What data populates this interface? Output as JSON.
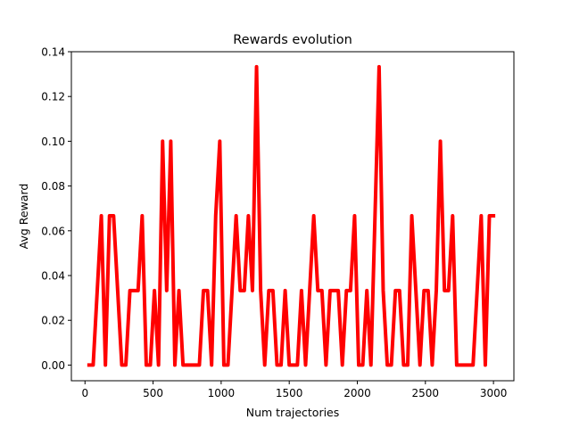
{
  "chart_data": {
    "type": "line",
    "title": "Rewards evolution",
    "xlabel": "Num trajectories",
    "ylabel": "Avg Reward",
    "xlim": [
      -100,
      3150
    ],
    "ylim": [
      -0.007,
      0.14
    ],
    "x_ticks": [
      0,
      500,
      1000,
      1500,
      2000,
      2500,
      3000
    ],
    "x_tick_labels": [
      "0",
      "500",
      "1000",
      "1500",
      "2000",
      "2500",
      "3000"
    ],
    "y_ticks": [
      0.0,
      0.02,
      0.04,
      0.06,
      0.08,
      0.1,
      0.12,
      0.14
    ],
    "y_tick_labels": [
      "0.00",
      "0.02",
      "0.04",
      "0.06",
      "0.08",
      "0.10",
      "0.12",
      "0.14"
    ],
    "grid": false,
    "series": [
      {
        "color": "#ff0000",
        "x": [
          30,
          60,
          90,
          120,
          150,
          180,
          210,
          240,
          270,
          300,
          330,
          360,
          390,
          420,
          450,
          480,
          510,
          540,
          570,
          600,
          630,
          660,
          690,
          720,
          750,
          780,
          810,
          840,
          870,
          900,
          930,
          960,
          990,
          1020,
          1050,
          1080,
          1110,
          1140,
          1170,
          1200,
          1230,
          1260,
          1290,
          1320,
          1350,
          1380,
          1410,
          1440,
          1470,
          1500,
          1530,
          1560,
          1590,
          1620,
          1650,
          1680,
          1710,
          1740,
          1770,
          1800,
          1830,
          1860,
          1890,
          1920,
          1950,
          1980,
          2010,
          2040,
          2070,
          2100,
          2130,
          2160,
          2190,
          2220,
          2250,
          2280,
          2310,
          2340,
          2370,
          2400,
          2430,
          2460,
          2490,
          2520,
          2550,
          2580,
          2610,
          2640,
          2670,
          2700,
          2730,
          2760,
          2790,
          2820,
          2850,
          2880,
          2910,
          2940,
          2970,
          3000
        ],
        "y": [
          0,
          0,
          0.0333,
          0.0667,
          0,
          0.0667,
          0.0667,
          0.0333,
          0,
          0,
          0.0333,
          0.0333,
          0.0333,
          0.0667,
          0,
          0,
          0.0333,
          0,
          0.1,
          0.0333,
          0.1,
          0,
          0.0333,
          0,
          0,
          0,
          0,
          0,
          0.0333,
          0.0333,
          0,
          0.0667,
          0.1,
          0,
          0,
          0.0333,
          0.0667,
          0.0333,
          0.0333,
          0.0667,
          0.0333,
          0.1333,
          0.0333,
          0,
          0.0333,
          0.0333,
          0,
          0,
          0.0333,
          0,
          0,
          0,
          0.0333,
          0,
          0.0333,
          0.0667,
          0.0333,
          0.0333,
          0,
          0.0333,
          0.0333,
          0.0333,
          0,
          0.0333,
          0.0333,
          0.0667,
          0,
          0,
          0.0333,
          0,
          0.0667,
          0.1333,
          0.0333,
          0,
          0,
          0.0333,
          0.0333,
          0,
          0,
          0.0667,
          0.0333,
          0,
          0.0333,
          0.0333,
          0,
          0.0333,
          0.1,
          0.0333,
          0.0333,
          0.0667,
          0,
          0,
          0,
          0,
          0,
          0.0333,
          0.0667,
          0,
          0.0667,
          0.0667
        ]
      }
    ]
  }
}
